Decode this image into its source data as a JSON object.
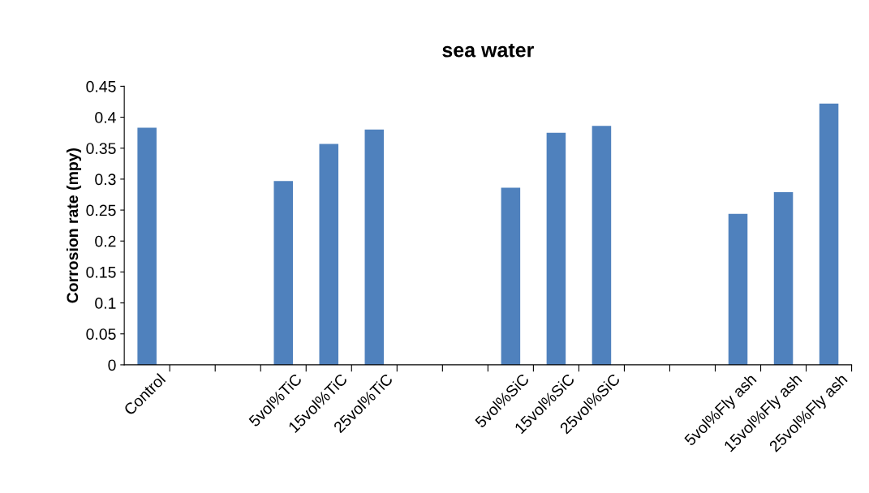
{
  "chart_data": {
    "type": "bar",
    "title": "sea water",
    "ylabel": "Corrosion rate (mpy)",
    "categories": [
      "Control",
      null,
      null,
      "5vol%TiC",
      "15vol%TiC",
      "25vol%TiC",
      null,
      null,
      "5vol%SiC",
      "15vol%SiC",
      "25vol%SiC",
      null,
      null,
      "5vol%Fly ash",
      "15vol%Fly ash",
      "25vol%Fly ash"
    ],
    "values": [
      0.383,
      null,
      null,
      0.297,
      0.357,
      0.38,
      null,
      null,
      0.286,
      0.375,
      0.386,
      null,
      null,
      0.244,
      0.279,
      0.422
    ],
    "color": "#4f81bd",
    "ylim": [
      0,
      0.45
    ],
    "yticks": [
      0,
      0.05,
      0.1,
      0.15,
      0.2,
      0.25,
      0.3,
      0.35,
      0.4,
      0.45
    ],
    "grid": false,
    "legend": false
  }
}
